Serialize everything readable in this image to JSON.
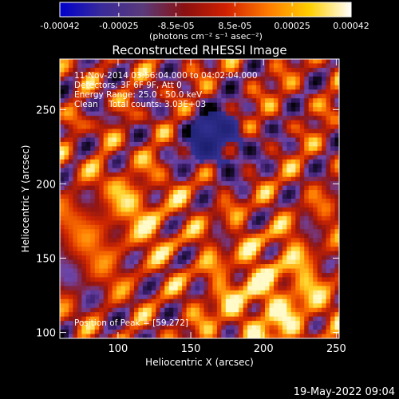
{
  "colorbar": {
    "tick_labels": [
      "-0.00042",
      "-0.00025",
      "-8.5e-05",
      "8.5e-05",
      "0.00025",
      "0.00042"
    ],
    "tick_values": [
      -0.00042,
      -0.00025,
      -8.5e-05,
      8.5e-05,
      0.00025,
      0.00042
    ],
    "range": [
      -0.00042,
      0.00042
    ],
    "units_label": "(photons cm⁻² s⁻¹ asec⁻²)",
    "colors": [
      "#0000cc",
      "#3a2a9a",
      "#5a3a7a",
      "#8a1010",
      "#d02000",
      "#ff7a00",
      "#ffd000",
      "#ffffff"
    ]
  },
  "chart_data": {
    "type": "heatmap",
    "title": "Reconstructed RHESSI Image",
    "xlabel": "Heliocentric X (arcsec)",
    "ylabel": "Heliocentric Y (arcsec)",
    "xlim": [
      60,
      252
    ],
    "ylim": [
      96,
      284
    ],
    "xticks": [
      100,
      150,
      200,
      250
    ],
    "yticks": [
      100,
      150,
      200,
      250
    ],
    "grid": false,
    "annotations": {
      "time_range": "11-Nov-2014 03:56:04.000 to 04:02:04.000",
      "detectors": "Detectors: 3F 6F 9F, Att 0",
      "energy_range": "Energy Range: 25.0 - 50.0 keV",
      "clean_counts": "Clean    Total counts: 3.03E+03",
      "peak": "Position of Peak = [59,272]"
    }
  },
  "footer": {
    "timestamp": "19-May-2022 09:04"
  }
}
